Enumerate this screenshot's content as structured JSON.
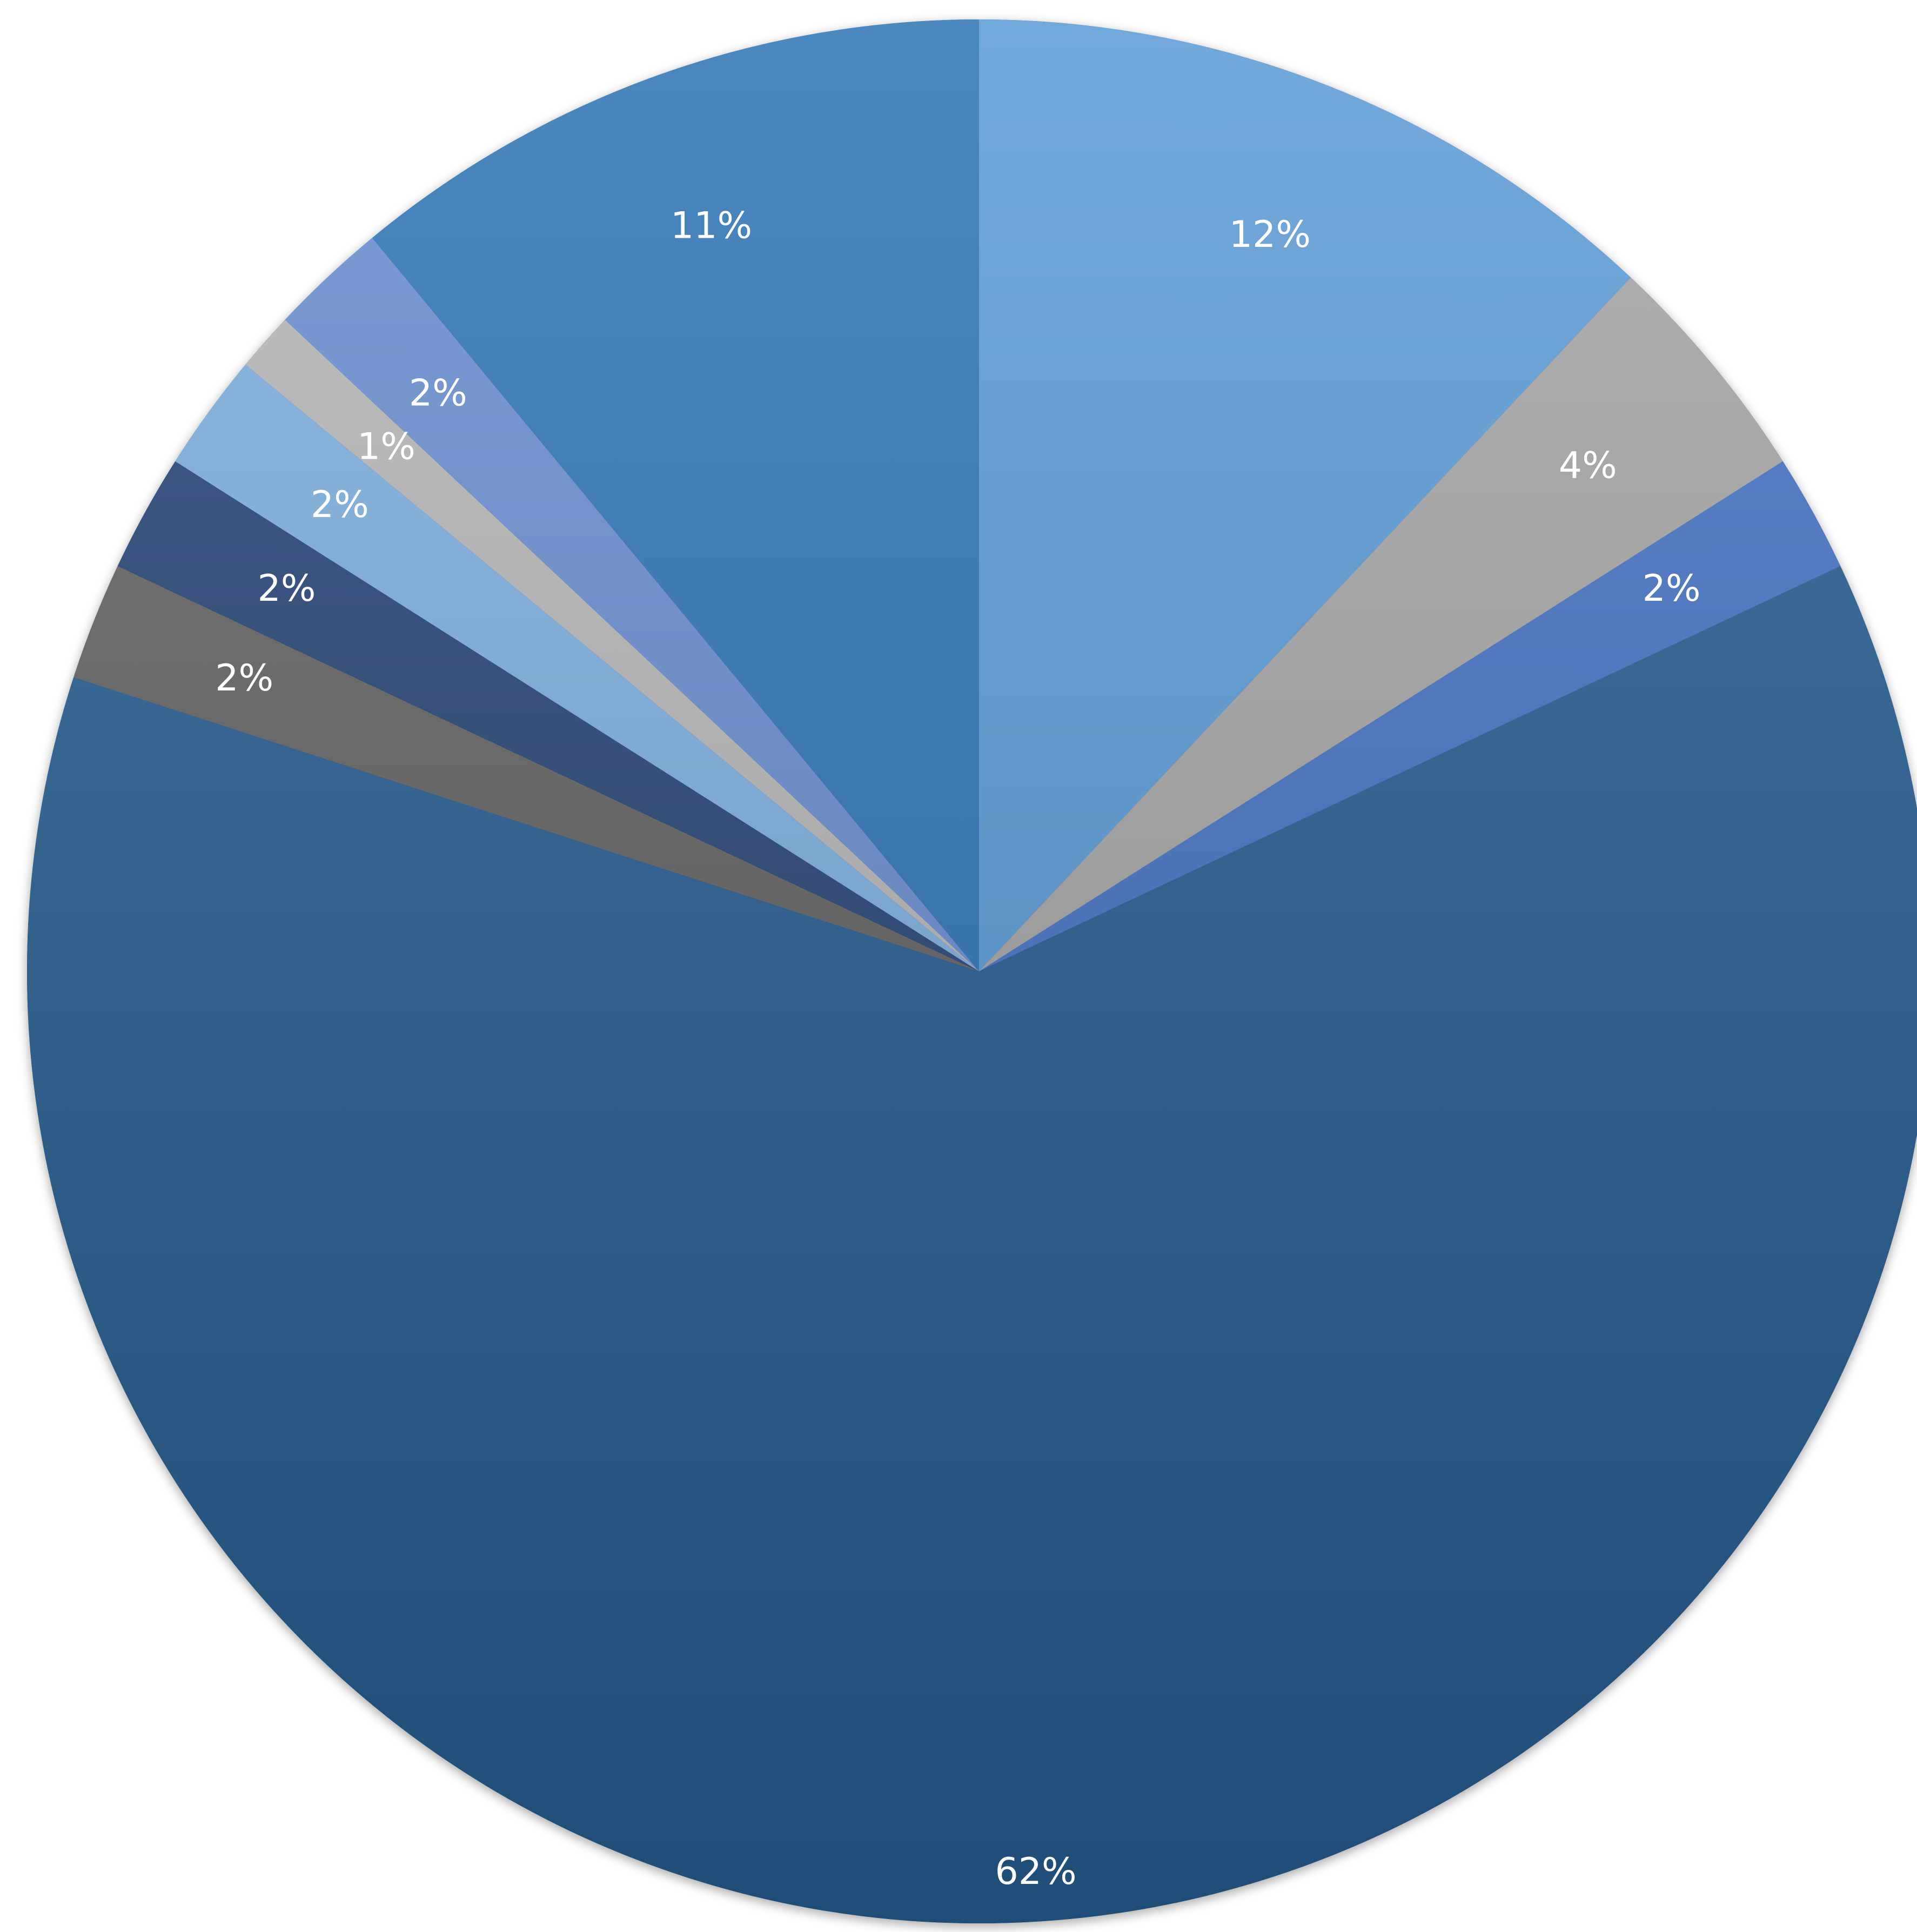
{
  "chart_data": {
    "type": "pie",
    "title": "",
    "start": "12 o'clock",
    "direction": "clockwise",
    "legend": "none",
    "slices": [
      {
        "value": 12,
        "label": "12%",
        "color": "#5b9bd5"
      },
      {
        "value": 4,
        "label": "4%",
        "color": "#a5a5a5"
      },
      {
        "value": 2,
        "label": "2%",
        "color": "#4472c4"
      },
      {
        "value": 62,
        "label": "62%",
        "color": "#255e91"
      },
      {
        "value": 2,
        "label": "2%",
        "color": "#636363"
      },
      {
        "value": 2,
        "label": "2%",
        "color": "#264478"
      },
      {
        "value": 2,
        "label": "2%",
        "color": "#7cafdd"
      },
      {
        "value": 1,
        "label": "1%",
        "color": "#b7b7b7"
      },
      {
        "value": 2,
        "label": "2%",
        "color": "#698ed0"
      },
      {
        "value": 11,
        "label": "11%",
        "color": "#2e75b6"
      }
    ]
  }
}
